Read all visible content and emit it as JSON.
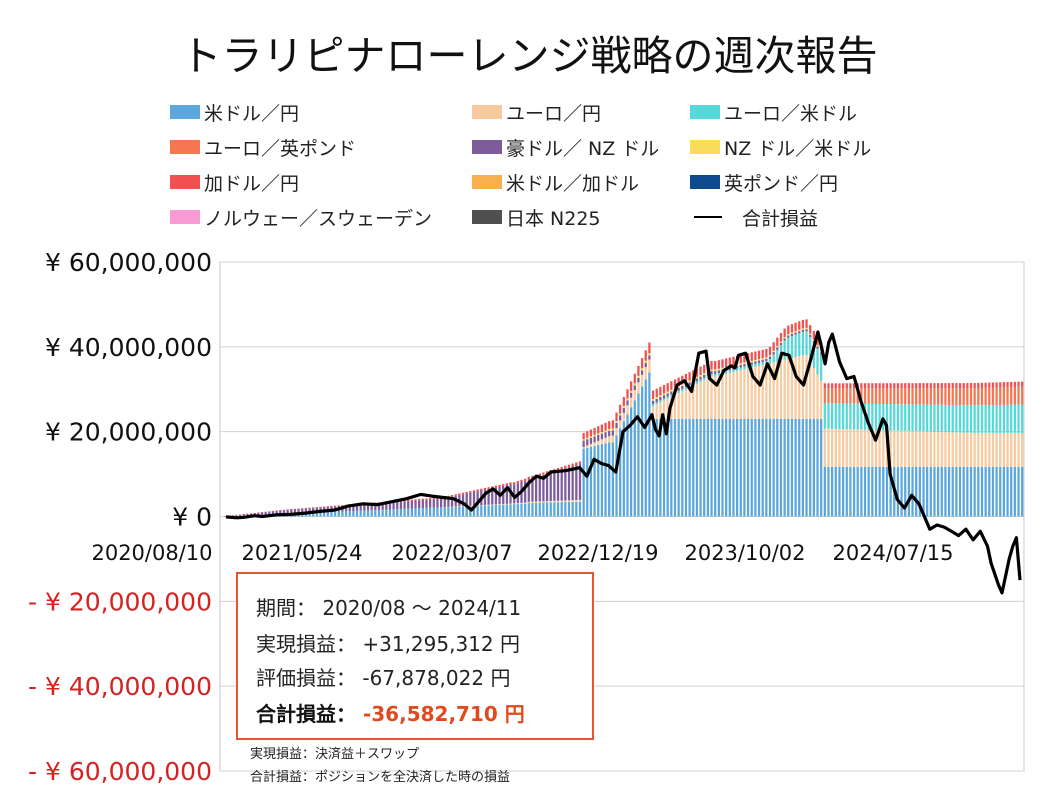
{
  "chart_data": {
    "type": "bar",
    "title": "トラリピナローレンジ戦略の週次報告",
    "y_tick_labels": [
      "¥ 60,000,000",
      "¥ 40,000,000",
      "¥ 20,000,000",
      "¥ 0",
      "- ¥ 20,000,000",
      "- ¥ 40,000,000",
      "- ¥ 60,000,000"
    ],
    "y_ticks": [
      60000000,
      40000000,
      20000000,
      0,
      -20000000,
      -40000000,
      -60000000
    ],
    "ylim": [
      -60000000,
      60000000
    ],
    "x_tick_labels": [
      "2020/08/10",
      "2021/05/24",
      "2022/03/07",
      "2022/12/19",
      "2023/10/02",
      "2024/07/15"
    ],
    "x_tick_weeks": [
      0,
      41,
      82,
      123,
      164,
      205
    ],
    "weeks": 220,
    "grid": true,
    "legend_position": "top",
    "series": [
      {
        "name": "米ドル／円",
        "color": "#5ba7dc",
        "segments": [
          [
            0,
            84,
            0,
            3000000
          ],
          [
            84,
            99,
            3200000,
            3500000
          ],
          [
            99,
            107,
            16000000,
            17500000
          ],
          [
            107,
            118,
            17500000,
            34000000
          ],
          [
            118,
            165,
            23000000,
            23000000
          ],
          [
            165,
            220,
            11700000,
            11700000
          ]
        ]
      },
      {
        "name": "ユーロ／円",
        "color": "#f8caa0",
        "segments": [
          [
            0,
            60,
            0,
            0
          ],
          [
            60,
            99,
            0,
            400000
          ],
          [
            99,
            118,
            400000,
            3000000
          ],
          [
            118,
            135,
            3000000,
            10000000
          ],
          [
            135,
            160,
            10000000,
            15000000
          ],
          [
            160,
            165,
            15000000,
            9000000
          ],
          [
            165,
            207,
            9000000,
            8000000
          ],
          [
            207,
            220,
            8000000,
            8000000
          ]
        ]
      },
      {
        "name": "ユーロ／米ドル",
        "color": "#57d8d8",
        "segments": [
          [
            0,
            118,
            0,
            0
          ],
          [
            118,
            150,
            500000,
            700000
          ],
          [
            150,
            155,
            1000000,
            4500000
          ],
          [
            155,
            165,
            5000000,
            6200000
          ],
          [
            165,
            220,
            6000000,
            6700000
          ]
        ]
      },
      {
        "name": "ユーロ／英ポンド",
        "color": "#f47752",
        "segments": [
          [
            0,
            165,
            0,
            0
          ],
          [
            165,
            220,
            3500000,
            4200000
          ]
        ]
      },
      {
        "name": "豪ドル／ NZ ドル",
        "color": "#7e5b9a",
        "segments": [
          [
            0,
            20,
            0,
            1000000
          ],
          [
            20,
            60,
            1000000,
            2000000
          ],
          [
            60,
            80,
            2000000,
            4500000
          ],
          [
            80,
            99,
            4500000,
            8500000
          ],
          [
            99,
            118,
            1500000,
            1000000
          ],
          [
            118,
            160,
            800000,
            500000
          ],
          [
            160,
            165,
            500000,
            500000
          ],
          [
            165,
            220,
            0,
            0
          ]
        ]
      },
      {
        "name": "NZ ドル／米ドル",
        "color": "#f8dc5a",
        "segments": [
          [
            0,
            99,
            0,
            0
          ],
          [
            99,
            118,
            300000,
            500000
          ],
          [
            118,
            165,
            400000,
            300000
          ],
          [
            165,
            220,
            0,
            0
          ]
        ]
      },
      {
        "name": "加ドル／円",
        "color": "#f05050",
        "segments": [
          [
            0,
            40,
            0,
            200000
          ],
          [
            40,
            99,
            200000,
            600000
          ],
          [
            99,
            118,
            1500000,
            2500000
          ],
          [
            118,
            165,
            2000000,
            2000000
          ],
          [
            165,
            220,
            1200000,
            1200000
          ]
        ]
      },
      {
        "name": "米ドル／加ドル",
        "color": "#f8b04e",
        "segments": [
          [
            0,
            165,
            0,
            0
          ],
          [
            165,
            220,
            0,
            0
          ]
        ]
      },
      {
        "name": "英ポンド／円",
        "color": "#0e4a8c",
        "segments": [
          [
            0,
            220,
            0,
            0
          ]
        ]
      },
      {
        "name": "ノルウェー／スウェーデン",
        "color": "#f89ad4",
        "segments": [
          [
            0,
            220,
            0,
            0
          ]
        ]
      },
      {
        "name": "日本 N225",
        "color": "#505050",
        "segments": [
          [
            0,
            220,
            0,
            0
          ]
        ]
      }
    ],
    "total_line": {
      "name": "合計損益",
      "color": "#000000",
      "points": [
        [
          0,
          -100000
        ],
        [
          3,
          -300000
        ],
        [
          5,
          -200000
        ],
        [
          8,
          200000
        ],
        [
          10,
          0
        ],
        [
          14,
          400000
        ],
        [
          18,
          500000
        ],
        [
          22,
          800000
        ],
        [
          26,
          1200000
        ],
        [
          30,
          1500000
        ],
        [
          34,
          2500000
        ],
        [
          38,
          3000000
        ],
        [
          42,
          2800000
        ],
        [
          46,
          3500000
        ],
        [
          50,
          4200000
        ],
        [
          54,
          5200000
        ],
        [
          57,
          4800000
        ],
        [
          60,
          4500000
        ],
        [
          63,
          4200000
        ],
        [
          66,
          3000000
        ],
        [
          68,
          1500000
        ],
        [
          70,
          3500000
        ],
        [
          72,
          5500000
        ],
        [
          74,
          6500000
        ],
        [
          76,
          5000000
        ],
        [
          78,
          6800000
        ],
        [
          80,
          4500000
        ],
        [
          82,
          6000000
        ],
        [
          84,
          8000000
        ],
        [
          86,
          9500000
        ],
        [
          88,
          9000000
        ],
        [
          90,
          10500000
        ],
        [
          94,
          10800000
        ],
        [
          98,
          11500000
        ],
        [
          100,
          9500000
        ],
        [
          102,
          13500000
        ],
        [
          104,
          12500000
        ],
        [
          106,
          12000000
        ],
        [
          108,
          10500000
        ],
        [
          110,
          20000000
        ],
        [
          112,
          21500000
        ],
        [
          114,
          23500000
        ],
        [
          116,
          21000000
        ],
        [
          118,
          24000000
        ],
        [
          119,
          20500000
        ],
        [
          120,
          19000000
        ],
        [
          121,
          24000000
        ],
        [
          122,
          19500000
        ],
        [
          123,
          25500000
        ],
        [
          125,
          31000000
        ],
        [
          127,
          32000000
        ],
        [
          129,
          29500000
        ],
        [
          131,
          38500000
        ],
        [
          133,
          39000000
        ],
        [
          134,
          32500000
        ],
        [
          136,
          31000000
        ],
        [
          138,
          34500000
        ],
        [
          140,
          35500000
        ],
        [
          141,
          35000000
        ],
        [
          142,
          38000000
        ],
        [
          144,
          38500000
        ],
        [
          146,
          33000000
        ],
        [
          148,
          31000000
        ],
        [
          150,
          36000000
        ],
        [
          152,
          32500000
        ],
        [
          154,
          38500000
        ],
        [
          156,
          38000000
        ],
        [
          158,
          33000000
        ],
        [
          160,
          31000000
        ],
        [
          162,
          37000000
        ],
        [
          164,
          43500000
        ],
        [
          165,
          40000000
        ],
        [
          166,
          36000000
        ],
        [
          167,
          41000000
        ],
        [
          168,
          43000000
        ],
        [
          170,
          36500000
        ],
        [
          172,
          32500000
        ],
        [
          174,
          33000000
        ],
        [
          176,
          27000000
        ],
        [
          178,
          22000000
        ],
        [
          180,
          18000000
        ],
        [
          182,
          23000000
        ],
        [
          183,
          21500000
        ],
        [
          184,
          10000000
        ],
        [
          186,
          4000000
        ],
        [
          188,
          2000000
        ],
        [
          190,
          5000000
        ],
        [
          192,
          3000000
        ],
        [
          193,
          1000000
        ],
        [
          195,
          -3000000
        ],
        [
          197,
          -2000000
        ],
        [
          199,
          -2500000
        ],
        [
          201,
          -3500000
        ],
        [
          203,
          -4500000
        ],
        [
          205,
          -3000000
        ],
        [
          207,
          -5500000
        ],
        [
          209,
          -3500000
        ],
        [
          211,
          -7000000
        ],
        [
          212,
          -11000000
        ],
        [
          214,
          -16000000
        ],
        [
          215,
          -18000000
        ],
        [
          217,
          -10000000
        ],
        [
          218,
          -7000000
        ],
        [
          219,
          -5000000
        ],
        [
          220,
          -15000000
        ]
      ],
      "display_weeks": 260,
      "display_note": "line spans wider than bars"
    }
  },
  "summary": {
    "period_label": "期間：",
    "period_value": "2020/08 〜 2024/11",
    "realized_label": "実現損益：",
    "realized_value": "+31,295,312 円",
    "unrealized_label": "評価損益：",
    "unrealized_value": "-67,878,022 円",
    "total_label": "合計損益：",
    "total_value": "-36,582,710 円"
  },
  "notes": {
    "line1": "実現損益：決済益＋スワップ",
    "line2": "合計損益：ポジションを全決済した時の損益"
  },
  "legend_line_label": "合計損益"
}
